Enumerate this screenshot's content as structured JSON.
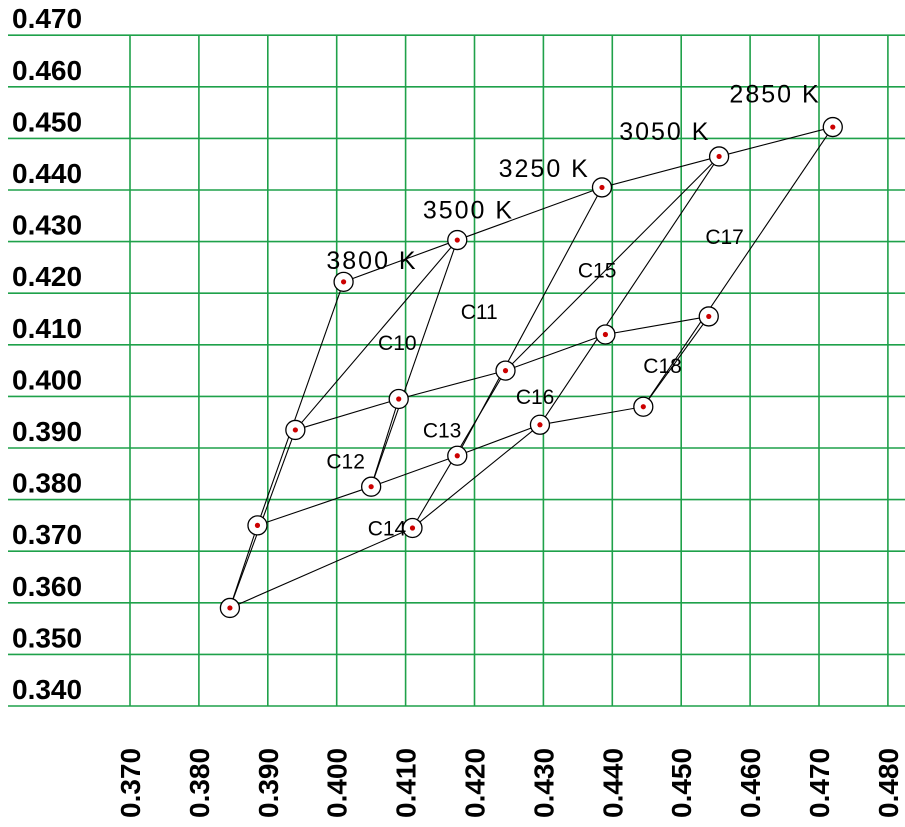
{
  "chart_data": {
    "type": "scatter",
    "title": "",
    "xlabel": "",
    "ylabel": "",
    "xlim": [
      0.37,
      0.48
    ],
    "ylim": [
      0.34,
      0.47
    ],
    "x_ticks": [
      "0.370",
      "0.380",
      "0.390",
      "0.400",
      "0.410",
      "0.420",
      "0.430",
      "0.440",
      "0.450",
      "0.460",
      "0.470",
      "0.480"
    ],
    "y_ticks": [
      "0.340",
      "0.350",
      "0.360",
      "0.370",
      "0.380",
      "0.390",
      "0.400",
      "0.410",
      "0.420",
      "0.430",
      "0.440",
      "0.450",
      "0.460",
      "0.470"
    ],
    "grid": true,
    "colors": {
      "grid": "#1fa14a",
      "lines": "#000000",
      "point_dot": "#cc0000"
    },
    "points": [
      {
        "id": "p3800",
        "x": 0.401,
        "y": 0.4222
      },
      {
        "id": "p3500",
        "x": 0.4175,
        "y": 0.4303
      },
      {
        "id": "p3250",
        "x": 0.4385,
        "y": 0.4405
      },
      {
        "id": "p3050",
        "x": 0.4555,
        "y": 0.4465
      },
      {
        "id": "p2850",
        "x": 0.472,
        "y": 0.4522
      },
      {
        "id": "m1",
        "x": 0.394,
        "y": 0.3935
      },
      {
        "id": "m2",
        "x": 0.409,
        "y": 0.3995
      },
      {
        "id": "m3",
        "x": 0.4245,
        "y": 0.405
      },
      {
        "id": "m4",
        "x": 0.439,
        "y": 0.412
      },
      {
        "id": "m5",
        "x": 0.454,
        "y": 0.4155
      },
      {
        "id": "b1",
        "x": 0.3885,
        "y": 0.375
      },
      {
        "id": "b2",
        "x": 0.405,
        "y": 0.3825
      },
      {
        "id": "b3",
        "x": 0.4175,
        "y": 0.3885
      },
      {
        "id": "b4",
        "x": 0.4295,
        "y": 0.3945
      },
      {
        "id": "b5",
        "x": 0.4445,
        "y": 0.398
      },
      {
        "id": "lo1",
        "x": 0.3845,
        "y": 0.359
      },
      {
        "id": "lo2",
        "x": 0.411,
        "y": 0.3745
      }
    ],
    "segments": [
      [
        "p3800",
        "p3500"
      ],
      [
        "p3500",
        "p3250"
      ],
      [
        "p3250",
        "p3050"
      ],
      [
        "p3050",
        "p2850"
      ],
      [
        "m1",
        "m2"
      ],
      [
        "m2",
        "m3"
      ],
      [
        "m3",
        "m4"
      ],
      [
        "m4",
        "m5"
      ],
      [
        "b1",
        "b2"
      ],
      [
        "b2",
        "b3"
      ],
      [
        "b3",
        "b4"
      ],
      [
        "b4",
        "b5"
      ],
      [
        "lo1",
        "lo2"
      ],
      [
        "lo2",
        "b4"
      ],
      [
        "p3800",
        "b1"
      ],
      [
        "b1",
        "lo1"
      ],
      [
        "lo1",
        "m1"
      ],
      [
        "m1",
        "p3500"
      ],
      [
        "p3500",
        "b2"
      ],
      [
        "b2",
        "m2"
      ],
      [
        "b3",
        "p3250"
      ],
      [
        "m3",
        "p3050"
      ],
      [
        "b4",
        "p3050"
      ],
      [
        "b5",
        "p2850"
      ],
      [
        "b5",
        "m5"
      ],
      [
        "lo2",
        "m3"
      ]
    ],
    "cct_labels": [
      {
        "text": "3800 K",
        "x": 0.3985,
        "y": 0.4247
      },
      {
        "text": "3500 K",
        "x": 0.4125,
        "y": 0.4345
      },
      {
        "text": "3250 K",
        "x": 0.4235,
        "y": 0.4425
      },
      {
        "text": "3050 K",
        "x": 0.441,
        "y": 0.4497
      },
      {
        "text": "2850 K",
        "x": 0.457,
        "y": 0.457
      }
    ],
    "quad_labels": [
      {
        "text": "C10",
        "x": 0.406,
        "y": 0.409
      },
      {
        "text": "C11",
        "x": 0.418,
        "y": 0.415
      },
      {
        "text": "C12",
        "x": 0.3985,
        "y": 0.386
      },
      {
        "text": "C13",
        "x": 0.4125,
        "y": 0.392
      },
      {
        "text": "C14",
        "x": 0.4045,
        "y": 0.373
      },
      {
        "text": "C15",
        "x": 0.435,
        "y": 0.423
      },
      {
        "text": "C16",
        "x": 0.426,
        "y": 0.3985
      },
      {
        "text": "C17",
        "x": 0.4535,
        "y": 0.4295
      },
      {
        "text": "C18",
        "x": 0.4445,
        "y": 0.4045
      }
    ]
  }
}
